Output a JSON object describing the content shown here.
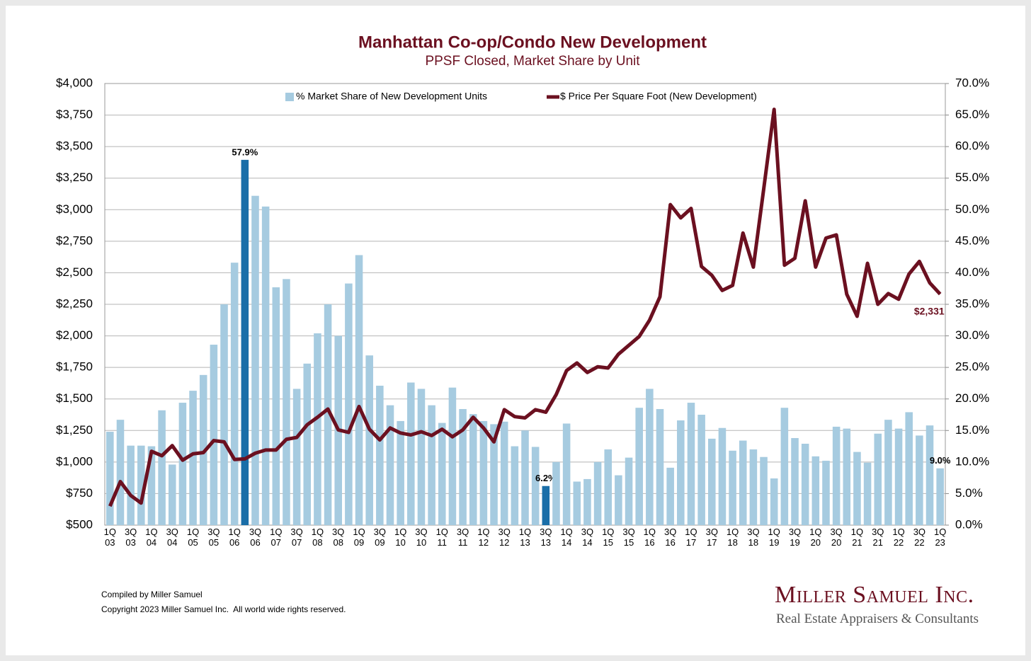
{
  "chart_data": {
    "type": "bar_line",
    "title": "Manhattan Co-op/Condo New Development",
    "subtitle": "PPSF Closed, Market Share by Unit",
    "categories": [
      "1Q\n03",
      null,
      "3Q\n03",
      null,
      "1Q\n04",
      null,
      "3Q\n04",
      null,
      "1Q\n05",
      null,
      "3Q\n05",
      null,
      "1Q\n06",
      null,
      "3Q\n06",
      null,
      "1Q\n07",
      null,
      "3Q\n07",
      null,
      "1Q\n08",
      null,
      "3Q\n08",
      null,
      "1Q\n09",
      null,
      "3Q\n09",
      null,
      "1Q\n10",
      null,
      "3Q\n10",
      null,
      "1Q\n11",
      null,
      "3Q\n11",
      null,
      "1Q\n12",
      null,
      "3Q\n12",
      null,
      "1Q\n13",
      null,
      "3Q\n13",
      null,
      "1Q\n14",
      null,
      "3Q\n14",
      null,
      "1Q\n15",
      null,
      "3Q\n15",
      null,
      "1Q\n16",
      null,
      "3Q\n16",
      null,
      "1Q\n17",
      null,
      "3Q\n17",
      null,
      "1Q\n18",
      null,
      "3Q\n18",
      null,
      "1Q\n19",
      null,
      "3Q\n19",
      null,
      "1Q\n20",
      null,
      "3Q\n20",
      null,
      "1Q\n21",
      null,
      "3Q\n21",
      null,
      "1Q\n22",
      null,
      "3Q\n22",
      null,
      "1Q\n23"
    ],
    "series": [
      {
        "name": "% Market Share of New Development Units",
        "type": "bar",
        "axis": "y2",
        "color": "#a6cbe0",
        "highlight_color": "#1a6ea8",
        "highlighted": [
          13,
          42
        ],
        "values": [
          14.8,
          16.7,
          12.6,
          12.6,
          12.5,
          18.2,
          9.6,
          19.4,
          21.3,
          23.8,
          28.6,
          35.0,
          41.6,
          57.9,
          52.2,
          50.5,
          37.7,
          39.0,
          21.6,
          25.6,
          30.4,
          35.0,
          30.0,
          38.3,
          42.8,
          26.9,
          22.1,
          19.0,
          16.5,
          22.6,
          21.6,
          19.0,
          16.2,
          21.8,
          18.4,
          17.6,
          16.5,
          16.0,
          16.4,
          12.5,
          15.0,
          12.4,
          6.2,
          10.0,
          16.1,
          6.9,
          7.3,
          10.0,
          12.0,
          7.9,
          10.7,
          18.6,
          21.6,
          18.4,
          9.1,
          16.6,
          19.4,
          17.5,
          13.7,
          15.4,
          11.8,
          13.4,
          12.0,
          10.8,
          7.4,
          18.6,
          13.8,
          12.9,
          10.9,
          10.2,
          15.6,
          15.3,
          11.6,
          9.9,
          14.5,
          16.7,
          15.3,
          17.9,
          14.2,
          15.8,
          9.0
        ],
        "value_labels": [
          null,
          null,
          null,
          null,
          null,
          null,
          null,
          null,
          null,
          null,
          null,
          null,
          null,
          "57.9%",
          null,
          null,
          null,
          null,
          null,
          null,
          null,
          null,
          null,
          null,
          null,
          null,
          null,
          null,
          null,
          null,
          null,
          null,
          null,
          null,
          null,
          null,
          null,
          null,
          null,
          null,
          null,
          null,
          "6.2%",
          null,
          null,
          null,
          null,
          null,
          null,
          null,
          null,
          null,
          null,
          null,
          null,
          null,
          null,
          null,
          null,
          null,
          null,
          null,
          null,
          null,
          null,
          null,
          null,
          null,
          null,
          null,
          null,
          null,
          null,
          null,
          null,
          null,
          null,
          null,
          null,
          null,
          "9.0%"
        ]
      },
      {
        "name": "$ Price Per Square Foot (New Development)",
        "type": "line",
        "axis": "y",
        "color": "#6b1020",
        "values": [
          650,
          845,
          735,
          675,
          1085,
          1050,
          1130,
          1015,
          1065,
          1075,
          1170,
          1160,
          1020,
          1025,
          1070,
          1095,
          1095,
          1180,
          1195,
          1295,
          1355,
          1420,
          1255,
          1235,
          1440,
          1260,
          1175,
          1270,
          1230,
          1215,
          1240,
          1210,
          1260,
          1200,
          1255,
          1355,
          1270,
          1160,
          1415,
          1360,
          1350,
          1415,
          1395,
          1535,
          1725,
          1785,
          1710,
          1755,
          1745,
          1855,
          1925,
          1995,
          2125,
          2310,
          3040,
          2935,
          3010,
          2550,
          2480,
          2360,
          2400,
          2815,
          2545,
          3165,
          3795,
          2560,
          2615,
          3070,
          2545,
          2775,
          2800,
          2330,
          2155,
          2575,
          2250,
          2335,
          2290,
          2490,
          2590,
          2420,
          2331
        ],
        "value_labels": [
          null,
          null,
          null,
          null,
          null,
          null,
          null,
          null,
          null,
          null,
          null,
          null,
          null,
          null,
          null,
          null,
          null,
          null,
          null,
          null,
          null,
          null,
          null,
          null,
          null,
          null,
          null,
          null,
          null,
          null,
          null,
          null,
          null,
          null,
          null,
          null,
          null,
          null,
          null,
          null,
          null,
          null,
          null,
          null,
          null,
          null,
          null,
          null,
          null,
          null,
          null,
          null,
          null,
          null,
          null,
          null,
          null,
          null,
          null,
          null,
          null,
          null,
          null,
          null,
          null,
          null,
          null,
          null,
          null,
          null,
          null,
          null,
          null,
          null,
          null,
          null,
          null,
          null,
          null,
          null,
          "$2,331"
        ]
      }
    ],
    "ylim": [
      500,
      4000
    ],
    "yticks": [
      {
        "value": 500,
        "label": "$500"
      },
      {
        "value": 750,
        "label": "$750"
      },
      {
        "value": 1000,
        "label": "$1,000"
      },
      {
        "value": 1250,
        "label": "$1,250"
      },
      {
        "value": 1500,
        "label": "$1,500"
      },
      {
        "value": 1750,
        "label": "$1,750"
      },
      {
        "value": 2000,
        "label": "$2,000"
      },
      {
        "value": 2250,
        "label": "$2,250"
      },
      {
        "value": 2500,
        "label": "$2,500"
      },
      {
        "value": 2750,
        "label": "$2,750"
      },
      {
        "value": 3000,
        "label": "$3,000"
      },
      {
        "value": 3250,
        "label": "$3,250"
      },
      {
        "value": 3500,
        "label": "$3,500"
      },
      {
        "value": 3750,
        "label": "$3,750"
      },
      {
        "value": 4000,
        "label": "$4,000"
      }
    ],
    "y2lim": [
      0,
      70
    ],
    "y2ticks": [
      {
        "value": 0,
        "label": "0.0%"
      },
      {
        "value": 5,
        "label": "5.0%"
      },
      {
        "value": 10,
        "label": "10.0%"
      },
      {
        "value": 15,
        "label": "15.0%"
      },
      {
        "value": 20,
        "label": "20.0%"
      },
      {
        "value": 25,
        "label": "25.0%"
      },
      {
        "value": 30,
        "label": "30.0%"
      },
      {
        "value": 35,
        "label": "35.0%"
      },
      {
        "value": 40,
        "label": "40.0%"
      },
      {
        "value": 45,
        "label": "45.0%"
      },
      {
        "value": 50,
        "label": "50.0%"
      },
      {
        "value": 55,
        "label": "55.0%"
      },
      {
        "value": 60,
        "label": "60.0%"
      },
      {
        "value": 65,
        "label": "65.0%"
      },
      {
        "value": 70,
        "label": "70.0%"
      }
    ],
    "grid": true,
    "legend": "top"
  },
  "footer": {
    "compiled": "Compiled by Miller Samuel",
    "copyright": "Copyright 2023 Miller Samuel Inc.  All world wide rights reserved.",
    "logo_name": "Miller Samuel Inc.",
    "logo_tagline": "Real Estate Appraisers & Consultants"
  }
}
